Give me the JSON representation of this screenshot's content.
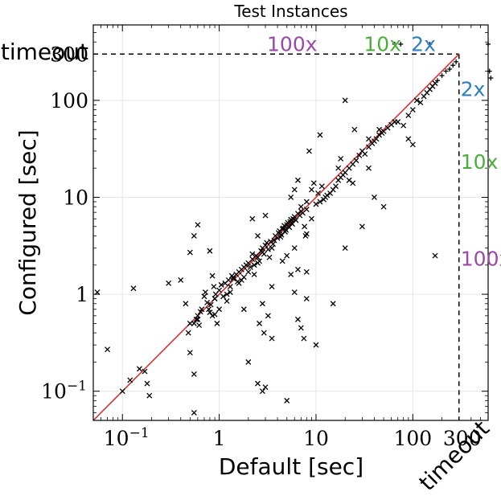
{
  "chart_data": {
    "type": "scatter",
    "title": "Test Instances",
    "xlabel": "Default [sec]",
    "ylabel": "Configured [sec]",
    "xscale": "log",
    "yscale": "log",
    "xlim": [
      0.05,
      600
    ],
    "ylim": [
      0.05,
      600
    ],
    "grid": true,
    "timeout_value": 300,
    "timeout_label": "timeout",
    "x_tick_labels": [
      {
        "value": 0.1,
        "base": "10",
        "exp": "−1"
      },
      {
        "value": 1,
        "text": "1"
      },
      {
        "value": 10,
        "text": "10"
      },
      {
        "value": 100,
        "text": "100"
      },
      {
        "value": 300,
        "text": "300"
      }
    ],
    "y_tick_labels": [
      {
        "value": 0.1,
        "base": "10",
        "exp": "−1"
      },
      {
        "value": 1,
        "text": "1"
      },
      {
        "value": 10,
        "text": "10"
      },
      {
        "value": 100,
        "text": "100"
      },
      {
        "value": 300,
        "text": "300"
      }
    ],
    "diagonal_color": "#d62728",
    "factor_lines": [
      {
        "factor": 2,
        "label": "2x",
        "color": "#2f7fbf"
      },
      {
        "factor": 10,
        "label": "10x",
        "color": "#4caf3c"
      },
      {
        "factor": 100,
        "label": "100x",
        "color": "#9a4aa6"
      }
    ],
    "points": [
      [
        0.055,
        1.05
      ],
      [
        0.07,
        0.27
      ],
      [
        0.1,
        0.1
      ],
      [
        0.12,
        0.13
      ],
      [
        0.13,
        1.15
      ],
      [
        0.15,
        0.17
      ],
      [
        0.17,
        0.16
      ],
      [
        0.18,
        0.12
      ],
      [
        0.19,
        0.09
      ],
      [
        0.3,
        1.3
      ],
      [
        0.4,
        1.4
      ],
      [
        0.45,
        0.8
      ],
      [
        0.48,
        0.4
      ],
      [
        0.5,
        2.7
      ],
      [
        0.55,
        0.5
      ],
      [
        0.58,
        0.55
      ],
      [
        0.6,
        0.6
      ],
      [
        0.62,
        0.48
      ],
      [
        0.64,
        0.66
      ],
      [
        0.66,
        0.7
      ],
      [
        0.7,
        0.95
      ],
      [
        0.72,
        1.05
      ],
      [
        0.75,
        0.82
      ],
      [
        0.78,
        0.7
      ],
      [
        0.8,
        0.65
      ],
      [
        0.82,
        0.78
      ],
      [
        0.85,
        0.6
      ],
      [
        0.88,
        1.2
      ],
      [
        0.9,
        0.9
      ],
      [
        0.92,
        1.0
      ],
      [
        1.0,
        1.1
      ],
      [
        1.05,
        1.25
      ],
      [
        1.1,
        0.95
      ],
      [
        1.15,
        1.3
      ],
      [
        1.2,
        1.0
      ],
      [
        1.25,
        1.4
      ],
      [
        1.3,
        1.2
      ],
      [
        1.35,
        1.55
      ],
      [
        1.4,
        1.45
      ],
      [
        1.5,
        1.6
      ],
      [
        1.55,
        1.35
      ],
      [
        1.6,
        1.7
      ],
      [
        1.7,
        1.8
      ],
      [
        1.8,
        1.5
      ],
      [
        1.9,
        2.0
      ],
      [
        2.0,
        2.1
      ],
      [
        2.1,
        1.9
      ],
      [
        2.2,
        2.3
      ],
      [
        2.3,
        2.0
      ],
      [
        2.4,
        2.5
      ],
      [
        2.5,
        2.4
      ],
      [
        2.6,
        2.2
      ],
      [
        2.7,
        2.8
      ],
      [
        2.8,
        3.0
      ],
      [
        2.9,
        2.6
      ],
      [
        3.0,
        3.2
      ],
      [
        3.2,
        2.9
      ],
      [
        3.4,
        3.5
      ],
      [
        3.6,
        3.3
      ],
      [
        3.8,
        4.0
      ],
      [
        4.0,
        3.8
      ],
      [
        4.2,
        4.5
      ],
      [
        4.4,
        4.1
      ],
      [
        4.6,
        4.8
      ],
      [
        4.8,
        4.4
      ],
      [
        5.0,
        5.2
      ],
      [
        5.2,
        5.0
      ],
      [
        5.4,
        5.6
      ],
      [
        5.6,
        5.4
      ],
      [
        5.8,
        6.0
      ],
      [
        6.0,
        6.3
      ],
      [
        6.2,
        5.8
      ],
      [
        6.5,
        6.8
      ],
      [
        6.8,
        6.5
      ],
      [
        7.0,
        7.2
      ],
      [
        7.3,
        6.9
      ],
      [
        7.6,
        5.0
      ],
      [
        7.8,
        4.0
      ],
      [
        8.0,
        4.2
      ],
      [
        1.4,
        1.5
      ],
      [
        1.6,
        1.3
      ],
      [
        1.8,
        1.9
      ],
      [
        2.0,
        1.7
      ],
      [
        2.2,
        2.6
      ],
      [
        2.5,
        2.1
      ],
      [
        2.8,
        2.7
      ],
      [
        3.1,
        3.4
      ],
      [
        3.3,
        2.4
      ],
      [
        3.5,
        3.0
      ],
      [
        3.7,
        3.6
      ],
      [
        4.1,
        4.3
      ],
      [
        4.3,
        3.9
      ],
      [
        4.5,
        4.7
      ],
      [
        4.7,
        5.1
      ],
      [
        4.9,
        4.6
      ],
      [
        5.1,
        5.5
      ],
      [
        5.3,
        4.9
      ],
      [
        5.5,
        5.9
      ],
      [
        5.7,
        5.3
      ],
      [
        0.6,
        5.2
      ],
      [
        0.55,
        4.0
      ],
      [
        0.8,
        2.8
      ],
      [
        0.5,
        0.5
      ],
      [
        0.6,
        0.55
      ],
      [
        0.9,
        0.62
      ],
      [
        1.2,
        0.85
      ],
      [
        1.3,
        1.05
      ],
      [
        1.7,
        1.4
      ],
      [
        2.3,
        1.6
      ],
      [
        2.2,
        6.0
      ],
      [
        2.5,
        4.0
      ],
      [
        3.0,
        6.5
      ],
      [
        3.5,
        1.2
      ],
      [
        2.8,
        0.8
      ],
      [
        1.8,
        0.7
      ],
      [
        2.0,
        0.2
      ],
      [
        2.5,
        0.12
      ],
      [
        2.8,
        0.1
      ],
      [
        3.0,
        0.11
      ],
      [
        4.5,
        2.2
      ],
      [
        5.0,
        2.5
      ],
      [
        6.0,
        3.0
      ],
      [
        5.5,
        1.6
      ],
      [
        6.5,
        1.8
      ],
      [
        8.0,
        1.7
      ],
      [
        6.0,
        1.05
      ],
      [
        6.5,
        0.55
      ],
      [
        7.0,
        0.45
      ],
      [
        8.0,
        0.9
      ],
      [
        0.5,
        0.25
      ],
      [
        0.55,
        0.15
      ],
      [
        0.55,
        0.06
      ],
      [
        0.85,
        1.55
      ],
      [
        0.95,
        0.5
      ],
      [
        5.0,
        0.08
      ],
      [
        3.5,
        0.35
      ],
      [
        2.6,
        0.5
      ],
      [
        0.9,
        0.9
      ],
      [
        1.0,
        0.7
      ],
      [
        5.5,
        10.0
      ],
      [
        6.0,
        12.0
      ],
      [
        6.5,
        15.0
      ],
      [
        7.0,
        8.0
      ],
      [
        8.0,
        7.5
      ],
      [
        8.5,
        30.0
      ],
      [
        9.0,
        6.0
      ],
      [
        10.0,
        8.5
      ],
      [
        11.0,
        9.0
      ],
      [
        12.0,
        9.5
      ],
      [
        12.5,
        10.0
      ],
      [
        13.0,
        10.5
      ],
      [
        14.0,
        11.0
      ],
      [
        15.0,
        12.0
      ],
      [
        16.0,
        13.0
      ],
      [
        17.0,
        15.0
      ],
      [
        18.0,
        16.0
      ],
      [
        19.0,
        17.0
      ],
      [
        20.0,
        18.0
      ],
      [
        22.0,
        20.0
      ],
      [
        24.0,
        22.0
      ],
      [
        26.0,
        24.0
      ],
      [
        28.0,
        27.0
      ],
      [
        30.0,
        30.0
      ],
      [
        32.0,
        28.0
      ],
      [
        35.0,
        33.0
      ],
      [
        38.0,
        36.0
      ],
      [
        40.0,
        38.0
      ],
      [
        42.0,
        40.0
      ],
      [
        45.0,
        44.0
      ],
      [
        48.0,
        46.0
      ],
      [
        50.0,
        48.0
      ],
      [
        55.0,
        52.0
      ],
      [
        60.0,
        56.0
      ],
      [
        65.0,
        60.0
      ],
      [
        11.0,
        44.0
      ],
      [
        20.0,
        100.0
      ],
      [
        25.0,
        50.0
      ],
      [
        35.0,
        20.0
      ],
      [
        40.0,
        10.0
      ],
      [
        50.0,
        8.0
      ],
      [
        30.0,
        5.0
      ],
      [
        20.0,
        3.0
      ],
      [
        10.0,
        0.3
      ],
      [
        15.0,
        0.8
      ],
      [
        7.5,
        0.35
      ],
      [
        2.9,
        0.4
      ],
      [
        3.2,
        0.6
      ],
      [
        35.0,
        40.0
      ],
      [
        45.0,
        50.0
      ],
      [
        70.0,
        60.0
      ],
      [
        80.0,
        55.0
      ],
      [
        90.0,
        70.0
      ],
      [
        100.0,
        80.0
      ],
      [
        110.0,
        100.0
      ],
      [
        120.0,
        95.0
      ],
      [
        130.0,
        110.0
      ],
      [
        140.0,
        120.0
      ],
      [
        150.0,
        130.0
      ],
      [
        160.0,
        140.0
      ],
      [
        170.0,
        150.0
      ],
      [
        180.0,
        160.0
      ],
      [
        200.0,
        180.0
      ],
      [
        220.0,
        200.0
      ],
      [
        240.0,
        210.0
      ],
      [
        260.0,
        230.0
      ],
      [
        280.0,
        250.0
      ],
      [
        170.0,
        2.5
      ],
      [
        100.0,
        35.0
      ],
      [
        90.0,
        40.0
      ],
      [
        65.0,
        380.0
      ],
      [
        75.0,
        380.0
      ],
      [
        150.0,
        380.0
      ],
      [
        600.0,
        380.0
      ],
      [
        650.0,
        380.0
      ],
      [
        680.0,
        380.0
      ],
      [
        700.0,
        380.0
      ],
      [
        620.0,
        200.0
      ],
      [
        640.0,
        170.0
      ],
      [
        660.0,
        190.0
      ],
      [
        700.0,
        110.0
      ],
      [
        18.0,
        25.0
      ],
      [
        17.0,
        20.0
      ],
      [
        22.0,
        15.0
      ],
      [
        24.0,
        14.0
      ],
      [
        8.0,
        9.0
      ],
      [
        9.0,
        12.0
      ],
      [
        9.5,
        14.0
      ],
      [
        10.5,
        11.0
      ],
      [
        11.5,
        13.0
      ]
    ]
  }
}
